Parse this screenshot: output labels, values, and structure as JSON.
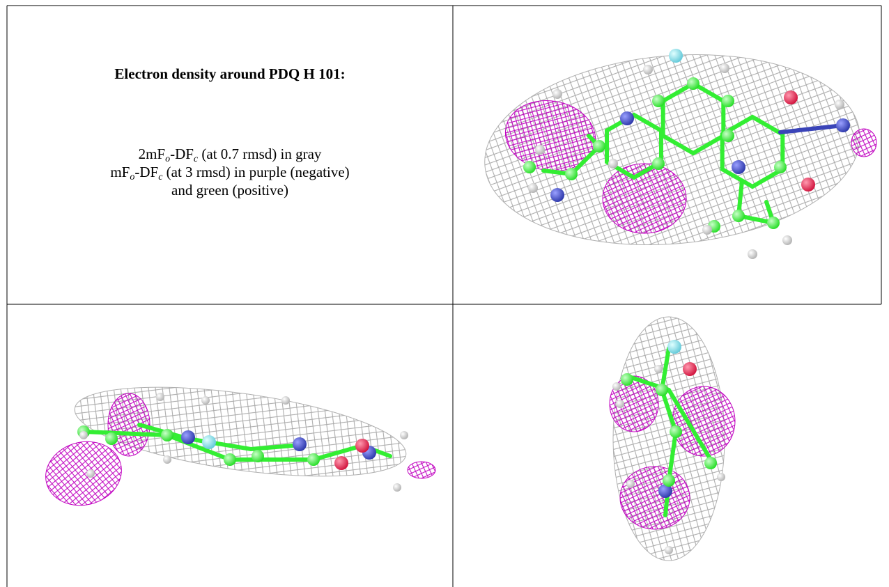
{
  "header": {
    "title": "Electron density around PDQ H 101:"
  },
  "legend": {
    "lines": [
      [
        "2mF",
        "o",
        "-DF",
        "c",
        " (at 0.7 rmsd) in gray"
      ],
      [
        "mF",
        "o",
        "-DF",
        "c",
        " (at 3 rmsd) in purple (negative)"
      ],
      [
        "and green (positive)"
      ]
    ]
  }
}
